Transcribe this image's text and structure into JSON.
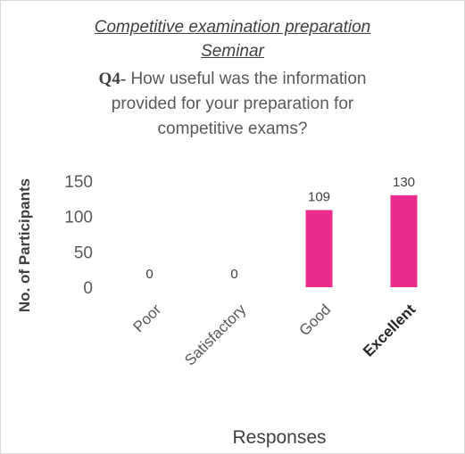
{
  "chart_data": {
    "type": "bar",
    "title": "Competitive examination preparation Seminar",
    "title_line1": "Competitive examination preparation",
    "title_line2": "Seminar",
    "question_label": "Q4-",
    "question_lines": [
      "How useful was the information",
      "provided for your preparation for",
      "competitive exams?"
    ],
    "categories": [
      "Poor",
      "Satisfactory",
      "Good",
      "Excellent"
    ],
    "values": [
      0,
      0,
      109,
      130
    ],
    "data_labels": [
      "0",
      "0",
      "109",
      "130"
    ],
    "xlabel": "Responses",
    "ylabel": "No. of Participants",
    "ylim": [
      0,
      150
    ],
    "yticks": [
      0,
      50,
      100,
      150
    ],
    "bar_color": "#ec2c8c",
    "grid": false,
    "legend": "none"
  }
}
